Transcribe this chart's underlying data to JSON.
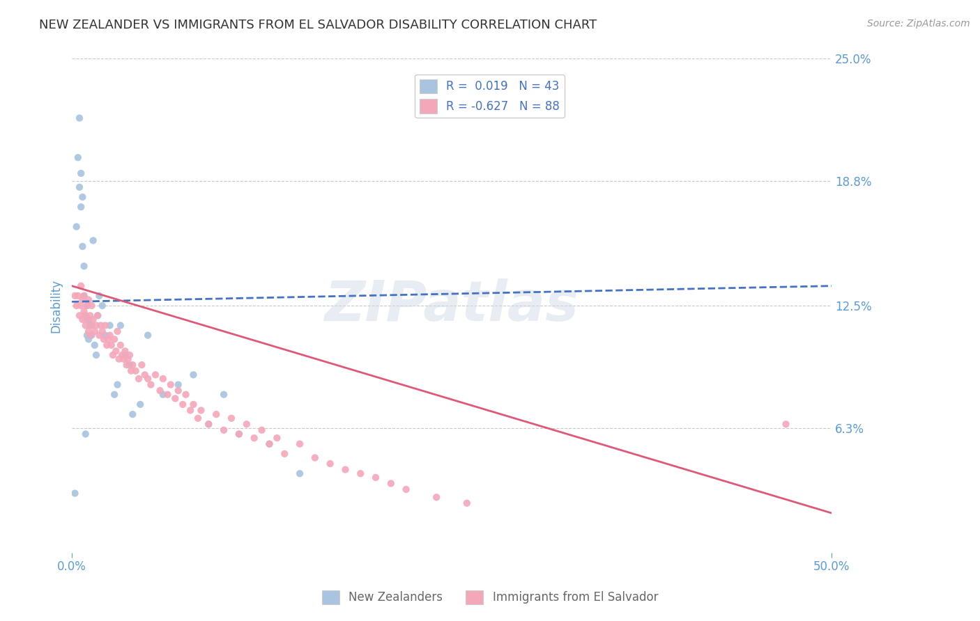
{
  "title": "NEW ZEALANDER VS IMMIGRANTS FROM EL SALVADOR DISABILITY CORRELATION CHART",
  "source_text": "Source: ZipAtlas.com",
  "ylabel": "Disability",
  "xlim": [
    0.0,
    0.5
  ],
  "ylim": [
    0.0,
    0.25
  ],
  "ytick_labels": [
    "25.0%",
    "18.8%",
    "12.5%",
    "6.3%"
  ],
  "ytick_positions": [
    0.25,
    0.188,
    0.125,
    0.063
  ],
  "watermark": "ZIPatlas",
  "series": [
    {
      "name": "New Zealanders",
      "R": 0.019,
      "N": 43,
      "color": "#a8c4e0",
      "line_color": "#4472c4",
      "linestyle": "--",
      "x": [
        0.002,
        0.003,
        0.004,
        0.005,
        0.005,
        0.006,
        0.006,
        0.007,
        0.007,
        0.008,
        0.008,
        0.009,
        0.009,
        0.01,
        0.01,
        0.011,
        0.011,
        0.012,
        0.013,
        0.014,
        0.015,
        0.016,
        0.017,
        0.018,
        0.02,
        0.022,
        0.025,
        0.028,
        0.03,
        0.032,
        0.035,
        0.038,
        0.04,
        0.045,
        0.05,
        0.06,
        0.07,
        0.08,
        0.09,
        0.1,
        0.11,
        0.13,
        0.15
      ],
      "y": [
        0.03,
        0.165,
        0.2,
        0.22,
        0.185,
        0.175,
        0.192,
        0.18,
        0.155,
        0.145,
        0.13,
        0.12,
        0.06,
        0.125,
        0.11,
        0.118,
        0.108,
        0.115,
        0.11,
        0.158,
        0.105,
        0.1,
        0.12,
        0.13,
        0.125,
        0.11,
        0.115,
        0.08,
        0.085,
        0.115,
        0.1,
        0.095,
        0.07,
        0.075,
        0.11,
        0.08,
        0.085,
        0.09,
        0.065,
        0.08,
        0.06,
        0.055,
        0.04
      ]
    },
    {
      "name": "Immigrants from El Salvador",
      "R": -0.627,
      "N": 88,
      "color": "#f4a7b9",
      "line_color": "#e05878",
      "linestyle": "-",
      "x": [
        0.002,
        0.003,
        0.004,
        0.005,
        0.006,
        0.006,
        0.007,
        0.007,
        0.008,
        0.008,
        0.009,
        0.009,
        0.01,
        0.01,
        0.011,
        0.011,
        0.012,
        0.012,
        0.013,
        0.013,
        0.014,
        0.015,
        0.016,
        0.017,
        0.018,
        0.019,
        0.02,
        0.021,
        0.022,
        0.023,
        0.024,
        0.025,
        0.026,
        0.027,
        0.028,
        0.029,
        0.03,
        0.031,
        0.032,
        0.033,
        0.034,
        0.035,
        0.036,
        0.037,
        0.038,
        0.039,
        0.04,
        0.042,
        0.044,
        0.046,
        0.048,
        0.05,
        0.052,
        0.055,
        0.058,
        0.06,
        0.063,
        0.065,
        0.068,
        0.07,
        0.073,
        0.075,
        0.078,
        0.08,
        0.083,
        0.085,
        0.09,
        0.095,
        0.1,
        0.105,
        0.11,
        0.115,
        0.12,
        0.125,
        0.13,
        0.135,
        0.14,
        0.15,
        0.16,
        0.17,
        0.18,
        0.19,
        0.2,
        0.21,
        0.22,
        0.24,
        0.26,
        0.47
      ],
      "y": [
        0.13,
        0.125,
        0.13,
        0.12,
        0.125,
        0.135,
        0.128,
        0.118,
        0.122,
        0.13,
        0.12,
        0.115,
        0.125,
        0.118,
        0.128,
        0.112,
        0.12,
        0.11,
        0.115,
        0.125,
        0.118,
        0.112,
        0.115,
        0.12,
        0.11,
        0.115,
        0.112,
        0.108,
        0.115,
        0.105,
        0.108,
        0.11,
        0.105,
        0.1,
        0.108,
        0.102,
        0.112,
        0.098,
        0.105,
        0.1,
        0.098,
        0.102,
        0.095,
        0.098,
        0.1,
        0.092,
        0.095,
        0.092,
        0.088,
        0.095,
        0.09,
        0.088,
        0.085,
        0.09,
        0.082,
        0.088,
        0.08,
        0.085,
        0.078,
        0.082,
        0.075,
        0.08,
        0.072,
        0.075,
        0.068,
        0.072,
        0.065,
        0.07,
        0.062,
        0.068,
        0.06,
        0.065,
        0.058,
        0.062,
        0.055,
        0.058,
        0.05,
        0.055,
        0.048,
        0.045,
        0.042,
        0.04,
        0.038,
        0.035,
        0.032,
        0.028,
        0.025,
        0.065
      ]
    }
  ],
  "legend_R_labels": [
    "R =  0.019   N = 43",
    "R = -0.627   N = 88"
  ],
  "title_fontsize": 13,
  "axis_color": "#5b9bd5",
  "background_color": "#ffffff",
  "grid_color": "#c8c8c8"
}
